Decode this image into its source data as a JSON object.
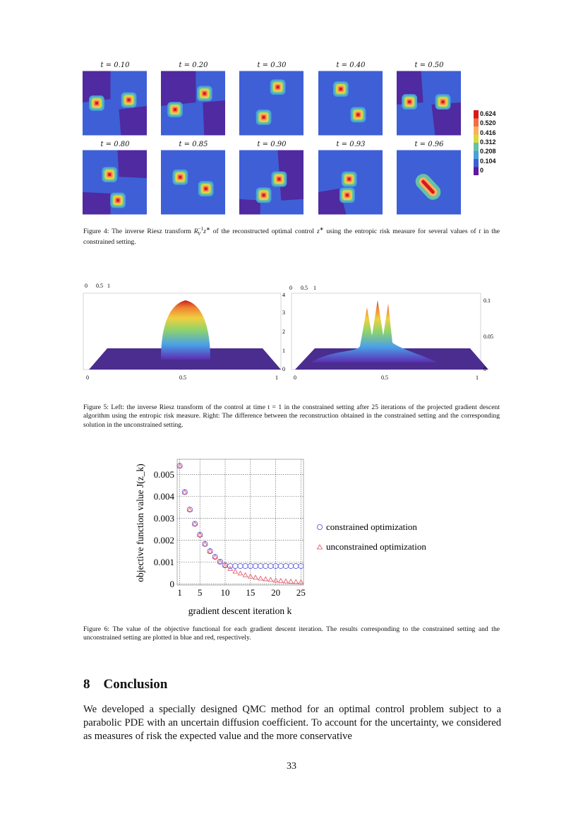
{
  "figure4": {
    "panel_labels": [
      "t = 0.10",
      "t = 0.20",
      "t = 0.30",
      "t = 0.40",
      "t = 0.50",
      "t = 0.80",
      "t = 0.85",
      "t = 0.90",
      "t = 0.93",
      "t = 0.96"
    ],
    "colorbar": {
      "ticks": [
        "0.624",
        "0.520",
        "0.416",
        "0.312",
        "0.208",
        "0.104",
        "0"
      ],
      "colors": [
        "#d7191c",
        "#f46d43",
        "#fdae61",
        "#d9d93b",
        "#66c2a5",
        "#4aa0d8",
        "#3d5fd6",
        "#5b1b9b"
      ]
    },
    "caption": "Figure 4: The inverse Riesz transform R_V^{-1} z* of the reconstructed optimal control z* using the entropic risk measure for several values of t in the constrained setting.",
    "caption_parts": {
      "a": "Figure 4: The inverse Riesz transform ",
      "b": "R",
      "c": "V",
      "d": "−1",
      "e": "z",
      "f": "∗",
      "g": " of the reconstructed optimal control ",
      "h": "z",
      "i": "∗",
      "j": " using the entropic risk measure for several values of ",
      "k": "t",
      "l": " in the constrained setting."
    }
  },
  "figure5": {
    "left": {
      "top_ticks": [
        "0",
        "0.5",
        "1"
      ],
      "x_ticks": [
        "0",
        "0.5",
        "1"
      ],
      "z_ticks": [
        "4",
        "3",
        "2",
        "1",
        "0"
      ]
    },
    "right": {
      "top_ticks": [
        "0",
        "0.5",
        "1"
      ],
      "x_ticks": [
        "0",
        "0.5",
        "1"
      ],
      "z_ticks": [
        "0.1",
        "0.05",
        "0"
      ]
    },
    "caption": "Figure 5: Left: the inverse Riesz transform of the control at time t = 1 in the constrained setting after 25 iterations of the projected gradient descent algorithm using the entropic risk measure. Right: The difference between the reconstruction obtained in the constrained setting and the corresponding solution in the unconstrained setting."
  },
  "chart_data": {
    "type": "scatter",
    "xlabel": "gradient descent iteration k",
    "ylabel": "objective function value J(z_k)",
    "xlim": [
      0.5,
      25.5
    ],
    "ylim": [
      -5e-05,
      0.0057
    ],
    "x_ticks": [
      "1",
      "5",
      "10",
      "15",
      "20",
      "25"
    ],
    "y_ticks": [
      "0",
      "0.001",
      "0.002",
      "0.003",
      "0.004",
      "0.005"
    ],
    "grid": true,
    "legend_position": "right-outside",
    "x": [
      1,
      2,
      3,
      4,
      5,
      6,
      7,
      8,
      9,
      10,
      11,
      12,
      13,
      14,
      15,
      16,
      17,
      18,
      19,
      20,
      21,
      22,
      23,
      24,
      25
    ],
    "series": [
      {
        "name": "constrained optimization",
        "marker": "circle",
        "color": "#4a4ae0",
        "values": [
          0.0054,
          0.0042,
          0.0034,
          0.00275,
          0.00225,
          0.00183,
          0.0015,
          0.00124,
          0.00102,
          0.00085,
          0.00082,
          0.00082,
          0.00082,
          0.00082,
          0.00082,
          0.00082,
          0.00082,
          0.00082,
          0.00082,
          0.00082,
          0.00082,
          0.00082,
          0.00082,
          0.00082,
          0.00082
        ]
      },
      {
        "name": "unconstrained optimization",
        "marker": "triangle",
        "color": "#e04a5a",
        "values": [
          0.0054,
          0.0042,
          0.0034,
          0.00275,
          0.00225,
          0.00183,
          0.0015,
          0.00124,
          0.00102,
          0.00085,
          0.0007,
          0.00058,
          0.00049,
          0.00041,
          0.00035,
          0.0003,
          0.00026,
          0.00023,
          0.0002,
          0.00017,
          0.00015,
          0.00013,
          0.00012,
          0.0001,
          9e-05
        ]
      }
    ]
  },
  "figure6": {
    "caption": "Figure 6: The value of the objective functional for each gradient descent iteration. The results corresponding to the constrained setting and the unconstrained setting are plotted in blue and red, respectively."
  },
  "section": {
    "number": "8",
    "title": "Conclusion",
    "body": "We developed a specially designed QMC method for an optimal control problem subject to a parabolic PDE with an uncertain diffusion coefficient. To account for the uncertainty, we considered as measures of risk the expected value and the more conservative"
  },
  "page_number": "33"
}
